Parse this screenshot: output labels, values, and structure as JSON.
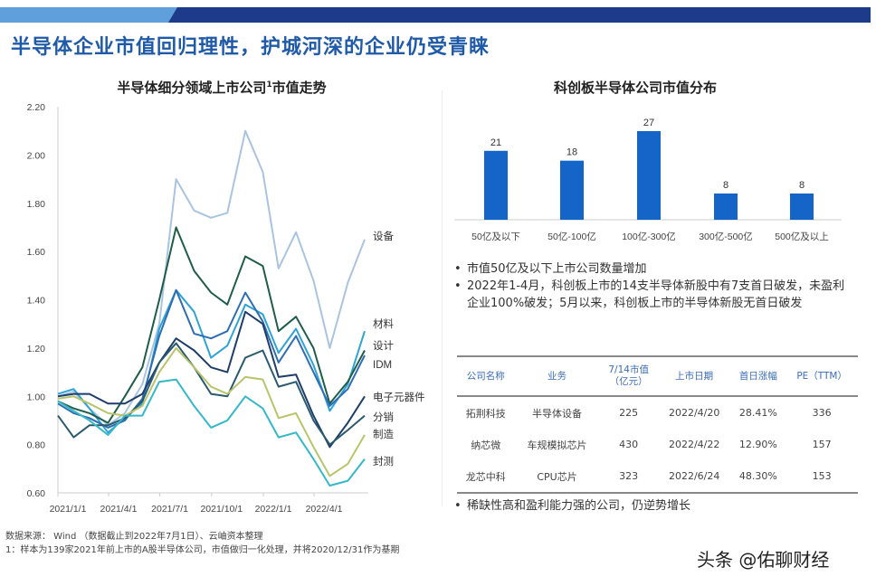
{
  "title": "半导体企业市值回归理性，护城河深的企业仍受青睐",
  "colors": {
    "banner_light": "#5fa0dc",
    "banner_dark": "#1e3a8a",
    "title": "#1f5aa8",
    "bar": "#1565c8"
  },
  "left_chart": {
    "title": "半导体细分领域上市公司",
    "title_sup": "1",
    "title_tail": "市值走势"
  },
  "right_chart": {
    "title": "科创板半导体公司市值分布"
  },
  "chart_data": [
    {
      "type": "line",
      "ylim": [
        0.6,
        2.2
      ],
      "yticks": [
        "0.60",
        "0.80",
        "1.00",
        "1.20",
        "1.40",
        "1.60",
        "1.80",
        "2.00",
        "2.20"
      ],
      "xticks": [
        "2021/1/1",
        "2021/4/1",
        "2021/7/1",
        "2021/10/1",
        "2022/1/1",
        "2022/4/1"
      ],
      "x": [
        "2021/1/1",
        "2021/1/29",
        "2021/2/26",
        "2021/3/31",
        "2021/4/30",
        "2021/5/31",
        "2021/6/30",
        "2021/7/30",
        "2021/8/31",
        "2021/9/30",
        "2021/10/29",
        "2021/11/30",
        "2021/12/31",
        "2022/1/28",
        "2022/2/28",
        "2022/3/31",
        "2022/4/29",
        "2022/5/31",
        "2022/6/30"
      ],
      "grid": false,
      "legend": "right (end-of-line labels)",
      "series": [
        {
          "name": "设备",
          "color": "#a9c4e0",
          "values": [
            1.0,
            1.02,
            0.95,
            0.88,
            0.93,
            1.05,
            1.3,
            1.9,
            1.77,
            1.74,
            1.76,
            2.1,
            1.93,
            1.53,
            1.68,
            1.48,
            1.2,
            1.47,
            1.65
          ]
        },
        {
          "name": "材料",
          "color": "#2ea3d6",
          "values": [
            1.01,
            1.03,
            0.95,
            0.85,
            0.91,
            0.97,
            1.28,
            1.44,
            1.35,
            1.16,
            1.21,
            1.38,
            1.34,
            1.18,
            1.28,
            1.13,
            0.94,
            1.05,
            1.27
          ]
        },
        {
          "name": "设计",
          "color": "#1f5c4a",
          "values": [
            0.98,
            0.95,
            0.93,
            0.89,
            1.0,
            1.12,
            1.4,
            1.7,
            1.52,
            1.43,
            1.38,
            1.58,
            1.54,
            1.27,
            1.33,
            1.2,
            0.97,
            1.06,
            1.19
          ]
        },
        {
          "name": "IDM",
          "color": "#2e6db4",
          "values": [
            0.97,
            0.93,
            0.91,
            0.87,
            0.9,
            0.99,
            1.25,
            1.44,
            1.26,
            1.24,
            1.27,
            1.43,
            1.31,
            1.14,
            1.25,
            1.1,
            0.96,
            1.03,
            1.17
          ]
        },
        {
          "name": "电子元器件",
          "color": "#1f3d6b",
          "values": [
            1.0,
            1.01,
            1.01,
            0.97,
            0.97,
            1.01,
            1.14,
            1.24,
            1.19,
            1.12,
            1.1,
            1.35,
            1.3,
            1.08,
            1.09,
            0.92,
            0.79,
            0.89,
            1.0
          ]
        },
        {
          "name": "分销",
          "color": "#2a5a6e",
          "values": [
            0.92,
            0.83,
            0.88,
            0.88,
            0.91,
            0.98,
            1.14,
            1.22,
            1.12,
            1.01,
            1.0,
            1.16,
            1.19,
            1.04,
            1.06,
            0.9,
            0.8,
            0.86,
            0.92
          ]
        },
        {
          "name": "制造",
          "color": "#b9c46a",
          "values": [
            0.99,
            1.0,
            0.97,
            0.93,
            0.92,
            0.96,
            1.1,
            1.2,
            1.12,
            1.04,
            1.01,
            1.08,
            1.07,
            0.91,
            0.93,
            0.79,
            0.67,
            0.72,
            0.84
          ]
        },
        {
          "name": "封测",
          "color": "#35b8c8",
          "values": [
            0.98,
            0.94,
            0.9,
            0.84,
            0.92,
            0.92,
            1.06,
            1.07,
            0.96,
            0.87,
            0.9,
            1.0,
            0.95,
            0.83,
            0.85,
            0.74,
            0.63,
            0.65,
            0.74
          ]
        }
      ]
    },
    {
      "type": "bar",
      "categories": [
        "50亿及以下",
        "50亿-100亿",
        "100亿-300亿",
        "300亿-500亿",
        "500亿及以上"
      ],
      "values": [
        21,
        18,
        27,
        8,
        8
      ],
      "ylim": [
        0,
        30
      ],
      "grid": false
    }
  ],
  "bullets_top": [
    "市值50亿及以下上市公司数量增加",
    "2022年1-4月，科创板上市的14支半导体新股中有7支首日破发，未盈利企业100%破发；5月以来，科创板上市的半导体新股无首日破发"
  ],
  "table": {
    "headers": [
      "公司名称",
      "业务",
      "7/14市值\n（亿元）",
      "上市日期",
      "首日涨幅",
      "PE（TTM）"
    ],
    "rows": [
      [
        "拓荆科技",
        "半导体设备",
        "225",
        "2022/4/20",
        "28.41%",
        "336"
      ],
      [
        "纳芯微",
        "车规模拟芯片",
        "430",
        "2022/4/22",
        "12.90%",
        "157"
      ],
      [
        "龙芯中科",
        "CPU芯片",
        "323",
        "2022/6/24",
        "48.30%",
        "153"
      ]
    ]
  },
  "bullet_bottom": "稀缺性高和盈利能力强的公司，仍逆势增长",
  "footnotes": {
    "source": "数据来源： Wind （数据截止到2022年7月1日）、云岫资本整理",
    "note": "1：样本为139家2021年前上市的A股半导体公司，市值做归一化处理，并将2020/12/31作为基期"
  },
  "watermark": "头条 @佑聊财经"
}
